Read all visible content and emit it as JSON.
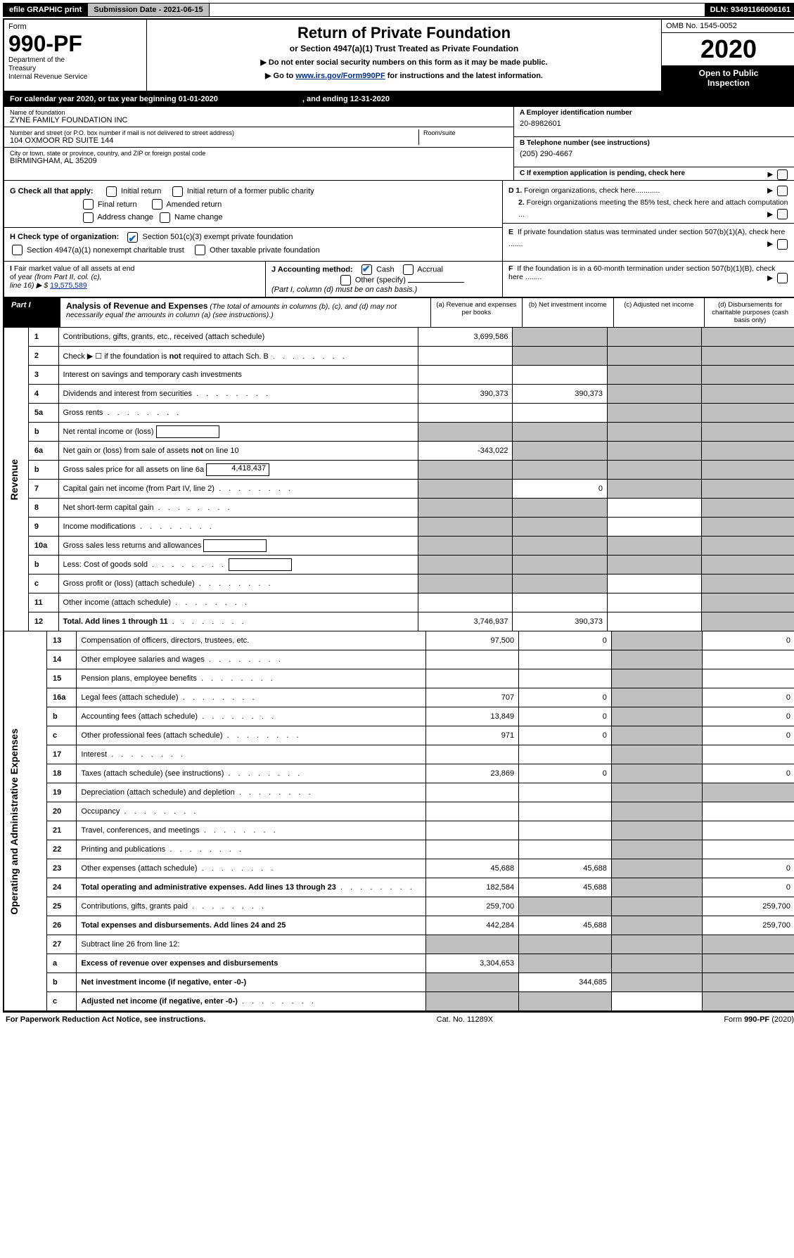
{
  "topbar": {
    "efile": "efile GRAPHIC print",
    "submission": "Submission Date - 2021-06-15",
    "dln": "DLN: 93491166006161"
  },
  "header": {
    "form_label": "Form",
    "form_no": "990-PF",
    "dept": "Department of the Treasury\nInternal Revenue Service",
    "title": "Return of Private Foundation",
    "subtitle": "or Section 4947(a)(1) Trust Treated as Private Foundation",
    "instr1": "▶ Do not enter social security numbers on this form as it may be made public.",
    "instr2_pre": "▶ Go to ",
    "instr2_link": "www.irs.gov/Form990PF",
    "instr2_post": " for instructions and the latest information.",
    "omb": "OMB No. 1545-0052",
    "year": "2020",
    "open": "Open to Public Inspection"
  },
  "calyear": {
    "left": "For calendar year 2020, or tax year beginning 01-01-2020",
    "right": ", and ending 12-31-2020"
  },
  "entity": {
    "name_label": "Name of foundation",
    "name": "ZYNE FAMILY FOUNDATION INC",
    "addr_label": "Number and street (or P.O. box number if mail is not delivered to street address)",
    "addr": "104 OXMOOR RD SUITE 144",
    "room_label": "Room/suite",
    "city_label": "City or town, state or province, country, and ZIP or foreign postal code",
    "city": "BIRMINGHAM, AL  35209",
    "ein_label": "A Employer identification number",
    "ein": "20-8982601",
    "tel_label": "B Telephone number (see instructions)",
    "tel": "(205) 290-4667",
    "c_label": "C If exemption application is pending, check here"
  },
  "g": {
    "label": "G Check all that apply:",
    "opts": [
      "Initial return",
      "Initial return of a former public charity",
      "Final return",
      "Amended return",
      "Address change",
      "Name change"
    ]
  },
  "h": {
    "label": "H Check type of organization:",
    "opt1": "Section 501(c)(3) exempt private foundation",
    "opt2": "Section 4947(a)(1) nonexempt charitable trust",
    "opt3": "Other taxable private foundation"
  },
  "d": {
    "d1": "D 1. Foreign organizations, check here............",
    "d2": "2. Foreign organizations meeting the 85% test, check here and attach computation ...",
    "e": "E  If private foundation status was terminated under section 507(b)(1)(A), check here .......",
    "f": "F  If the foundation is in a 60-month termination under section 507(b)(1)(B), check here ........"
  },
  "i": {
    "label": "I Fair market value of all assets at end of year (from Part II, col. (c),",
    "line16": "line 16) ▶ $",
    "val": "19,575,589"
  },
  "j": {
    "label": "J Accounting method:",
    "cash": "Cash",
    "accrual": "Accrual",
    "other": "Other (specify)",
    "note": "(Part I, column (d) must be on cash basis.)"
  },
  "part1": {
    "label": "Part I",
    "title": "Analysis of Revenue and Expenses",
    "titlesub": "(The total of amounts in columns (b), (c), and (d) may not necessarily equal the amounts in column (a) (see instructions).)",
    "cols": {
      "a": "(a)   Revenue and expenses per books",
      "b": "(b)   Net investment income",
      "c": "(c)   Adjusted net income",
      "d": "(d)   Disbursements for charitable purposes (cash basis only)"
    }
  },
  "side": {
    "rev": "Revenue",
    "exp": "Operating and Administrative Expenses"
  },
  "rows": [
    {
      "n": "1",
      "d": "Contributions, gifts, grants, etc., received (attach schedule)",
      "a": "3,699,586",
      "bs": true,
      "cs": true,
      "ds": true
    },
    {
      "n": "2",
      "d": "Check ▶ ☐ if the foundation is not required to attach Sch. B",
      "dots": true,
      "bs": true,
      "cs": true,
      "ds": true
    },
    {
      "n": "3",
      "d": "Interest on savings and temporary cash investments",
      "a": "",
      "cs": true,
      "ds": true
    },
    {
      "n": "4",
      "d": "Dividends and interest from securities",
      "dots": true,
      "a": "390,373",
      "b": "390,373",
      "cs": true,
      "ds": true
    },
    {
      "n": "5a",
      "d": "Gross rents",
      "dots": true,
      "cs": true,
      "ds": true
    },
    {
      "n": "b",
      "d": "Net rental income or (loss)",
      "box": true,
      "as": true,
      "bs": true,
      "cs": true,
      "ds": true
    },
    {
      "n": "6a",
      "d": "Net gain or (loss) from sale of assets not on line 10",
      "a": "-343,022",
      "bs": true,
      "cs": true,
      "ds": true
    },
    {
      "n": "b",
      "d": "Gross sales price for all assets on line 6a",
      "box": true,
      "boxval": "4,418,437",
      "as": true,
      "bs": true,
      "cs": true,
      "ds": true
    },
    {
      "n": "7",
      "d": "Capital gain net income (from Part IV, line 2)",
      "dots": true,
      "as": true,
      "b": "0",
      "cs": true,
      "ds": true
    },
    {
      "n": "8",
      "d": "Net short-term capital gain",
      "dots": true,
      "as": true,
      "bs": true,
      "ds": true
    },
    {
      "n": "9",
      "d": "Income modifications",
      "dots": true,
      "as": true,
      "bs": true,
      "ds": true
    },
    {
      "n": "10a",
      "d": "Gross sales less returns and allowances",
      "box": true,
      "as": true,
      "bs": true,
      "cs": true,
      "ds": true
    },
    {
      "n": "b",
      "d": "Less: Cost of goods sold",
      "dots": true,
      "box": true,
      "as": true,
      "bs": true,
      "cs": true,
      "ds": true
    },
    {
      "n": "c",
      "d": "Gross profit or (loss) (attach schedule)",
      "dots": true,
      "as": true,
      "bs": true,
      "ds": true
    },
    {
      "n": "11",
      "d": "Other income (attach schedule)",
      "dots": true,
      "ds": true
    },
    {
      "n": "12",
      "d": "Total. Add lines 1 through 11",
      "bold": true,
      "dots": true,
      "a": "3,746,937",
      "b": "390,373",
      "ds": true
    }
  ],
  "exprows": [
    {
      "n": "13",
      "d": "Compensation of officers, directors, trustees, etc.",
      "a": "97,500",
      "b": "0",
      "cs": true,
      "dv": "0"
    },
    {
      "n": "14",
      "d": "Other employee salaries and wages",
      "dots": true,
      "cs": true
    },
    {
      "n": "15",
      "d": "Pension plans, employee benefits",
      "dots": true,
      "cs": true
    },
    {
      "n": "16a",
      "d": "Legal fees (attach schedule)",
      "dots": true,
      "a": "707",
      "b": "0",
      "cs": true,
      "dv": "0"
    },
    {
      "n": "b",
      "d": "Accounting fees (attach schedule)",
      "dots": true,
      "a": "13,849",
      "b": "0",
      "cs": true,
      "dv": "0"
    },
    {
      "n": "c",
      "d": "Other professional fees (attach schedule)",
      "dots": true,
      "a": "971",
      "b": "0",
      "cs": true,
      "dv": "0"
    },
    {
      "n": "17",
      "d": "Interest",
      "dots": true,
      "cs": true
    },
    {
      "n": "18",
      "d": "Taxes (attach schedule) (see instructions)",
      "dots": true,
      "a": "23,869",
      "b": "0",
      "cs": true,
      "dv": "0"
    },
    {
      "n": "19",
      "d": "Depreciation (attach schedule) and depletion",
      "dots": true,
      "cs": true,
      "ds": true
    },
    {
      "n": "20",
      "d": "Occupancy",
      "dots": true,
      "cs": true
    },
    {
      "n": "21",
      "d": "Travel, conferences, and meetings",
      "dots": true,
      "cs": true
    },
    {
      "n": "22",
      "d": "Printing and publications",
      "dots": true,
      "cs": true
    },
    {
      "n": "23",
      "d": "Other expenses (attach schedule)",
      "dots": true,
      "a": "45,688",
      "b": "45,688",
      "cs": true,
      "dv": "0"
    },
    {
      "n": "24",
      "d": "Total operating and administrative expenses. Add lines 13 through 23",
      "bold": true,
      "dots": true,
      "a": "182,584",
      "b": "45,688",
      "cs": true,
      "dv": "0"
    },
    {
      "n": "25",
      "d": "Contributions, gifts, grants paid",
      "dots": true,
      "a": "259,700",
      "bs": true,
      "cs": true,
      "dv": "259,700"
    },
    {
      "n": "26",
      "d": "Total expenses and disbursements. Add lines 24 and 25",
      "bold": true,
      "a": "442,284",
      "b": "45,688",
      "cs": true,
      "dv": "259,700"
    },
    {
      "n": "27",
      "d": "Subtract line 26 from line 12:",
      "as": true,
      "bs": true,
      "cs": true,
      "ds": true
    },
    {
      "n": "a",
      "d": "Excess of revenue over expenses and disbursements",
      "bold": true,
      "a": "3,304,653",
      "bs": true,
      "cs": true,
      "ds": true
    },
    {
      "n": "b",
      "d": "Net investment income (if negative, enter -0-)",
      "bold": true,
      "as": true,
      "b": "344,685",
      "cs": true,
      "ds": true
    },
    {
      "n": "c",
      "d": "Adjusted net income (if negative, enter -0-)",
      "bold": true,
      "dots": true,
      "as": true,
      "bs": true,
      "ds": true
    }
  ],
  "footer": {
    "left": "For Paperwork Reduction Act Notice, see instructions.",
    "mid": "Cat. No. 11289X",
    "right": "Form 990-PF (2020)"
  }
}
